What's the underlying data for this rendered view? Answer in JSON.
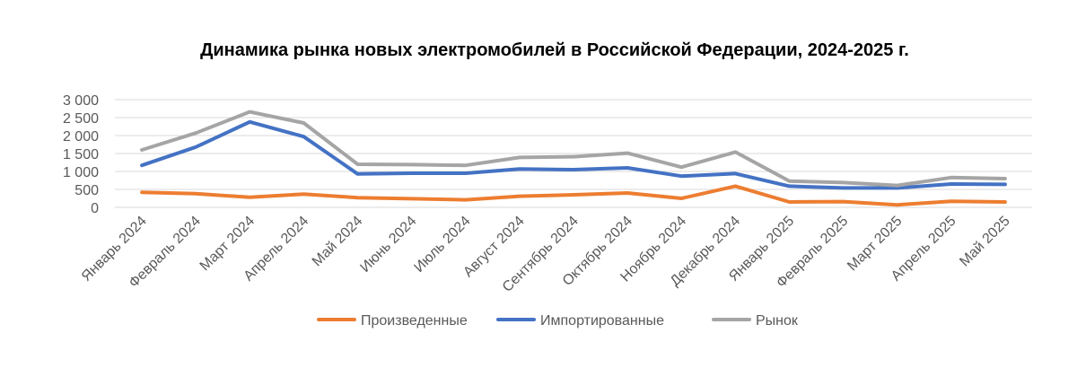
{
  "chart_data": {
    "type": "line",
    "title": "Динамика рынка новых электромобилей в Российской Федерации, 2024-2025 г.",
    "categories": [
      "Январь 2024",
      "Февраль 2024",
      "Март 2024",
      "Апрель 2024",
      "Май 2024",
      "Июнь 2024",
      "Июль 2024",
      "Август 2024",
      "Сентябрь 2024",
      "Октябрь 2024",
      "Ноябрь 2024",
      "Декабрь 2024",
      "Январь 2025",
      "Февраль 2025",
      "Март 2025",
      "Апрель 2025",
      "Май 2025"
    ],
    "ylim": [
      0,
      3000
    ],
    "yticks": [
      0,
      500,
      1000,
      1500,
      2000,
      2500,
      3000
    ],
    "ytick_labels": [
      "0",
      "500",
      "1 000",
      "1 500",
      "2 000",
      "2 500",
      "3 000"
    ],
    "grid": true,
    "legend_position": "bottom",
    "series": [
      {
        "name": "Произведенные",
        "color": "#ED7D31",
        "values": [
          420,
          380,
          280,
          370,
          270,
          240,
          210,
          310,
          350,
          400,
          250,
          590,
          150,
          160,
          70,
          170,
          150
        ]
      },
      {
        "name": "Импортированные",
        "color": "#4472C4",
        "values": [
          1170,
          1680,
          2380,
          1970,
          930,
          950,
          950,
          1070,
          1050,
          1100,
          870,
          940,
          590,
          540,
          540,
          650,
          640
        ]
      },
      {
        "name": "Рынок",
        "color": "#A5A5A5",
        "values": [
          1600,
          2070,
          2660,
          2350,
          1200,
          1190,
          1170,
          1390,
          1410,
          1510,
          1120,
          1540,
          730,
          690,
          610,
          830,
          800
        ]
      }
    ]
  }
}
